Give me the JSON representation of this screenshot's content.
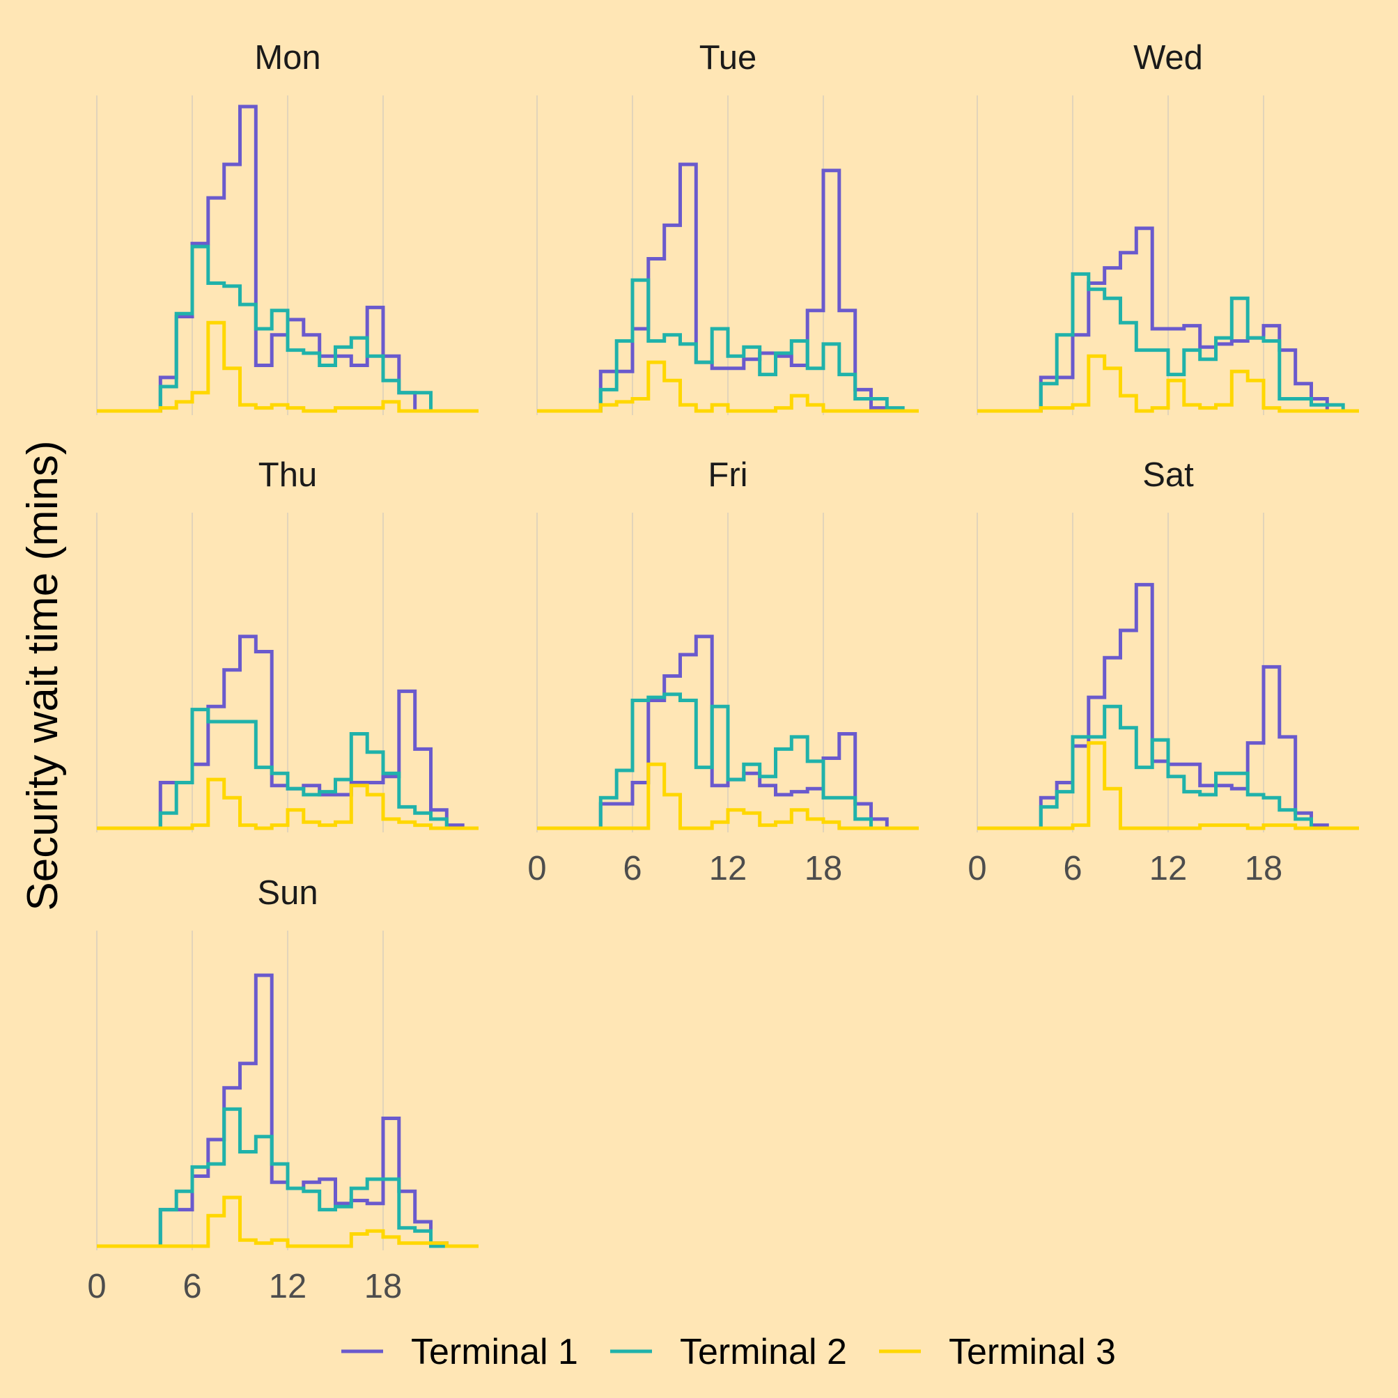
{
  "chart_data": {
    "type": "line",
    "step": true,
    "ylabel": "Security wait time (mins)",
    "xlabel": "",
    "xlim": [
      0,
      23
    ],
    "x_ticks": [
      "0",
      "6",
      "12",
      "18"
    ],
    "x_tick_values": [
      0,
      6,
      12,
      18
    ],
    "ylim": [
      0,
      100
    ],
    "y_tick_labels_shown": false,
    "grid": "vertical major only",
    "legend_position": "bottom",
    "hours": [
      0,
      1,
      2,
      3,
      4,
      5,
      6,
      7,
      8,
      9,
      10,
      11,
      12,
      13,
      14,
      15,
      16,
      17,
      18,
      19,
      20,
      21,
      22,
      23
    ],
    "series_meta": [
      {
        "name": "Terminal 1",
        "color": "#6A5ACD"
      },
      {
        "name": "Terminal 2",
        "color": "#20B2AA"
      },
      {
        "name": "Terminal 3",
        "color": "#FFD700"
      }
    ],
    "facets": [
      {
        "name": "Mon",
        "show_x_ticks": false,
        "series": [
          [
            0,
            0,
            0,
            0,
            11,
            31,
            55,
            70,
            81,
            100,
            15,
            25,
            30,
            25,
            18,
            18,
            15,
            34,
            18,
            6,
            0,
            0,
            0,
            0
          ],
          [
            0,
            0,
            0,
            0,
            8,
            32,
            54,
            42,
            41,
            35,
            27,
            33,
            20,
            19,
            15,
            21,
            24,
            18,
            10,
            6,
            6,
            0,
            0,
            0
          ],
          [
            0,
            0,
            0,
            0,
            1,
            3,
            6,
            29,
            14,
            2,
            1,
            2,
            1,
            0,
            0,
            1,
            1,
            1,
            3,
            0,
            0,
            0,
            0,
            0
          ]
        ]
      },
      {
        "name": "Tue",
        "show_x_ticks": false,
        "series": [
          [
            0,
            0,
            0,
            0,
            13,
            13,
            27,
            50,
            61,
            81,
            16,
            14,
            14,
            17,
            19,
            18,
            15,
            33,
            79,
            33,
            7,
            1,
            0,
            0
          ],
          [
            0,
            0,
            0,
            0,
            7,
            23,
            43,
            23,
            25,
            22,
            16,
            27,
            18,
            21,
            12,
            19,
            23,
            14,
            22,
            12,
            4,
            4,
            1,
            0
          ],
          [
            0,
            0,
            0,
            0,
            2,
            3,
            4,
            16,
            10,
            2,
            0,
            2,
            0,
            0,
            0,
            1,
            5,
            2,
            0,
            0,
            0,
            0,
            0,
            0
          ]
        ]
      },
      {
        "name": "Wed",
        "show_x_ticks": false,
        "series": [
          [
            0,
            0,
            0,
            0,
            11,
            11,
            25,
            42,
            47,
            52,
            60,
            27,
            27,
            28,
            21,
            22,
            23,
            24,
            28,
            20,
            9,
            4,
            0,
            0
          ],
          [
            0,
            0,
            0,
            0,
            9,
            25,
            45,
            40,
            37,
            29,
            20,
            20,
            12,
            20,
            17,
            24,
            37,
            24,
            23,
            4,
            4,
            2,
            2,
            0
          ],
          [
            0,
            0,
            0,
            0,
            1,
            1,
            2,
            18,
            14,
            5,
            0,
            1,
            10,
            2,
            1,
            2,
            13,
            10,
            1,
            0,
            0,
            0,
            0,
            0
          ]
        ]
      },
      {
        "name": "Thu",
        "show_x_ticks": false,
        "series": [
          [
            0,
            0,
            0,
            0,
            15,
            15,
            21,
            40,
            52,
            63,
            58,
            14,
            13,
            14,
            11,
            11,
            15,
            15,
            17,
            45,
            26,
            6,
            1,
            0
          ],
          [
            0,
            0,
            0,
            0,
            5,
            15,
            39,
            35,
            35,
            35,
            20,
            18,
            13,
            11,
            12,
            16,
            31,
            25,
            18,
            7,
            5,
            3,
            0,
            0
          ],
          [
            0,
            0,
            0,
            0,
            0,
            0,
            1,
            16,
            10,
            1,
            0,
            1,
            6,
            2,
            1,
            2,
            14,
            11,
            3,
            2,
            1,
            0,
            0,
            0
          ]
        ]
      },
      {
        "name": "Fri",
        "show_x_ticks": true,
        "series": [
          [
            0,
            0,
            0,
            0,
            8,
            8,
            15,
            42,
            50,
            57,
            63,
            14,
            16,
            18,
            14,
            11,
            12,
            13,
            23,
            31,
            8,
            3,
            0,
            0
          ],
          [
            0,
            0,
            0,
            0,
            10,
            19,
            42,
            43,
            44,
            42,
            20,
            40,
            16,
            21,
            17,
            26,
            30,
            22,
            10,
            10,
            3,
            0,
            0,
            0
          ],
          [
            0,
            0,
            0,
            0,
            0,
            0,
            0,
            21,
            11,
            0,
            0,
            2,
            6,
            5,
            1,
            2,
            6,
            3,
            2,
            0,
            0,
            0,
            0,
            0
          ]
        ]
      },
      {
        "name": "Sat",
        "show_x_ticks": true,
        "series": [
          [
            0,
            0,
            0,
            0,
            10,
            15,
            27,
            43,
            56,
            65,
            80,
            22,
            21,
            21,
            14,
            14,
            13,
            28,
            53,
            30,
            5,
            1,
            0,
            0
          ],
          [
            0,
            0,
            0,
            0,
            7,
            12,
            30,
            30,
            40,
            33,
            20,
            29,
            17,
            12,
            11,
            18,
            18,
            11,
            10,
            6,
            3,
            0,
            0,
            0
          ],
          [
            0,
            0,
            0,
            0,
            0,
            0,
            1,
            28,
            13,
            0,
            0,
            0,
            0,
            0,
            1,
            1,
            1,
            0,
            1,
            1,
            0,
            0,
            0,
            0
          ]
        ]
      },
      {
        "name": "Sun",
        "show_x_ticks": true,
        "series": [
          [
            0,
            0,
            0,
            0,
            12,
            12,
            23,
            35,
            52,
            60,
            89,
            21,
            19,
            21,
            22,
            14,
            15,
            14,
            42,
            18,
            8,
            1,
            0,
            0
          ],
          [
            0,
            0,
            0,
            0,
            12,
            18,
            26,
            27,
            45,
            31,
            36,
            27,
            19,
            18,
            12,
            13,
            19,
            22,
            22,
            6,
            5,
            0,
            0,
            0
          ],
          [
            0,
            0,
            0,
            0,
            0,
            0,
            0,
            10,
            16,
            2,
            1,
            2,
            0,
            0,
            0,
            0,
            4,
            5,
            3,
            1,
            1,
            1,
            0,
            0
          ]
        ]
      }
    ]
  }
}
